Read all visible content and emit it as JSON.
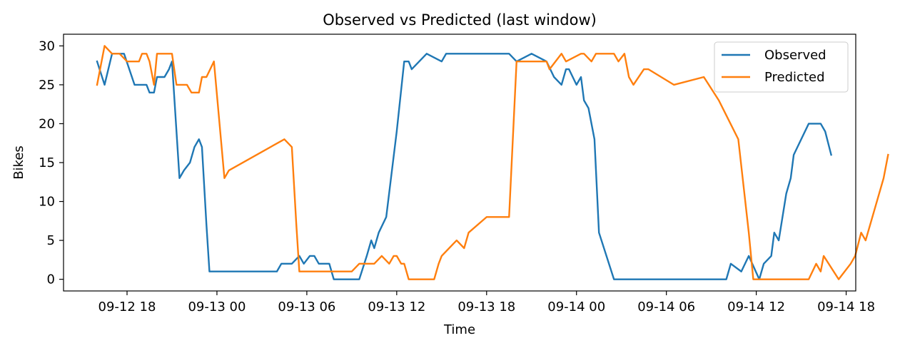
{
  "chart_data": {
    "type": "line",
    "title": "Observed vs Predicted (last window)",
    "xlabel": "Time",
    "ylabel": "Bikes",
    "x_unit": "hours since 2024-09-12 00:00",
    "xlim": [
      13.76,
      66.64
    ],
    "ylim": [
      -1.5,
      31.5
    ],
    "x_ticks": [
      {
        "value": 18,
        "label": "09-12 18"
      },
      {
        "value": 24,
        "label": "09-13 00"
      },
      {
        "value": 30,
        "label": "09-13 06"
      },
      {
        "value": 36,
        "label": "09-13 12"
      },
      {
        "value": 42,
        "label": "09-13 18"
      },
      {
        "value": 48,
        "label": "09-14 00"
      },
      {
        "value": 54,
        "label": "09-14 06"
      },
      {
        "value": 60,
        "label": "09-14 12"
      },
      {
        "value": 66,
        "label": "09-14 18"
      }
    ],
    "y_ticks": [
      0,
      5,
      10,
      15,
      20,
      25,
      30
    ],
    "grid": false,
    "legend_position": "top-right",
    "series": [
      {
        "name": "Observed",
        "color": "#1f77b4",
        "points": [
          [
            16.0,
            28
          ],
          [
            16.5,
            25
          ],
          [
            17.0,
            29
          ],
          [
            17.5,
            29
          ],
          [
            17.8,
            29
          ],
          [
            18.5,
            25
          ],
          [
            19.0,
            25
          ],
          [
            19.3,
            25
          ],
          [
            19.5,
            24
          ],
          [
            19.8,
            24
          ],
          [
            20.0,
            26
          ],
          [
            20.5,
            26
          ],
          [
            20.8,
            27
          ],
          [
            21.0,
            28
          ],
          [
            21.5,
            13
          ],
          [
            21.8,
            14
          ],
          [
            22.2,
            15
          ],
          [
            22.5,
            17
          ],
          [
            22.8,
            18
          ],
          [
            23.0,
            17
          ],
          [
            23.3,
            7
          ],
          [
            23.5,
            1
          ],
          [
            24.0,
            1
          ],
          [
            27.0,
            1
          ],
          [
            27.5,
            1
          ],
          [
            28.0,
            1
          ],
          [
            28.3,
            2
          ],
          [
            29.0,
            2
          ],
          [
            29.5,
            3
          ],
          [
            29.8,
            2
          ],
          [
            30.2,
            3
          ],
          [
            30.5,
            3
          ],
          [
            30.8,
            2
          ],
          [
            31.3,
            2
          ],
          [
            31.5,
            2
          ],
          [
            31.8,
            0
          ],
          [
            33.5,
            0
          ],
          [
            34.0,
            3
          ],
          [
            34.3,
            5
          ],
          [
            34.5,
            4
          ],
          [
            34.8,
            6
          ],
          [
            35.3,
            8
          ],
          [
            36.0,
            19
          ],
          [
            36.5,
            28
          ],
          [
            36.8,
            28
          ],
          [
            37.0,
            27
          ],
          [
            38.0,
            29
          ],
          [
            39.0,
            28
          ],
          [
            39.3,
            29
          ],
          [
            41.0,
            29
          ],
          [
            43.5,
            29
          ],
          [
            44.0,
            28
          ],
          [
            45.0,
            29
          ],
          [
            46.0,
            28
          ],
          [
            46.5,
            26
          ],
          [
            47.0,
            25
          ],
          [
            47.3,
            27
          ],
          [
            47.5,
            27
          ],
          [
            48.0,
            25
          ],
          [
            48.3,
            26
          ],
          [
            48.5,
            23
          ],
          [
            48.8,
            22
          ],
          [
            49.2,
            18
          ],
          [
            49.5,
            6
          ],
          [
            50.5,
            0
          ],
          [
            56.5,
            0
          ],
          [
            58.0,
            0
          ],
          [
            58.3,
            2
          ],
          [
            59.0,
            1
          ],
          [
            59.5,
            3
          ],
          [
            60.2,
            0
          ],
          [
            60.5,
            2
          ],
          [
            61.0,
            3
          ],
          [
            61.2,
            6
          ],
          [
            61.5,
            5
          ],
          [
            62.0,
            11
          ],
          [
            62.3,
            13
          ],
          [
            62.5,
            16
          ],
          [
            63.0,
            18
          ],
          [
            63.5,
            20
          ],
          [
            64.3,
            20
          ],
          [
            64.6,
            19
          ],
          [
            65.0,
            16
          ]
        ]
      },
      {
        "name": "Predicted",
        "color": "#ff7f0e",
        "points": [
          [
            16.0,
            25
          ],
          [
            16.5,
            30
          ],
          [
            17.0,
            29
          ],
          [
            17.5,
            29
          ],
          [
            18.0,
            28
          ],
          [
            18.5,
            28
          ],
          [
            18.8,
            28
          ],
          [
            19.0,
            29
          ],
          [
            19.3,
            29
          ],
          [
            19.5,
            28
          ],
          [
            19.8,
            25
          ],
          [
            20.0,
            29
          ],
          [
            20.5,
            29
          ],
          [
            21.0,
            29
          ],
          [
            21.3,
            25
          ],
          [
            22.0,
            25
          ],
          [
            22.3,
            24
          ],
          [
            22.8,
            24
          ],
          [
            23.0,
            26
          ],
          [
            23.3,
            26
          ],
          [
            23.8,
            28
          ],
          [
            24.5,
            13
          ],
          [
            24.8,
            14
          ],
          [
            28.5,
            18
          ],
          [
            29.0,
            17
          ],
          [
            29.3,
            7
          ],
          [
            29.5,
            1
          ],
          [
            33.0,
            1
          ],
          [
            33.5,
            2
          ],
          [
            34.5,
            2
          ],
          [
            35.0,
            3
          ],
          [
            35.5,
            2
          ],
          [
            35.8,
            3
          ],
          [
            36.0,
            3
          ],
          [
            36.3,
            2
          ],
          [
            36.5,
            2
          ],
          [
            36.8,
            0
          ],
          [
            38.5,
            0
          ],
          [
            38.8,
            2
          ],
          [
            39.0,
            3
          ],
          [
            40.0,
            5
          ],
          [
            40.5,
            4
          ],
          [
            40.8,
            6
          ],
          [
            42.0,
            8
          ],
          [
            43.5,
            8
          ],
          [
            44.0,
            28
          ],
          [
            45.5,
            28
          ],
          [
            46.0,
            28
          ],
          [
            46.2,
            27
          ],
          [
            47.0,
            29
          ],
          [
            47.3,
            28
          ],
          [
            48.3,
            29
          ],
          [
            48.5,
            29
          ],
          [
            49.0,
            28
          ],
          [
            49.3,
            29
          ],
          [
            50.0,
            29
          ],
          [
            50.5,
            29
          ],
          [
            50.8,
            28
          ],
          [
            51.2,
            29
          ],
          [
            51.5,
            26
          ],
          [
            51.8,
            25
          ],
          [
            52.5,
            27
          ],
          [
            52.8,
            27
          ],
          [
            54.5,
            25
          ],
          [
            56.5,
            26
          ],
          [
            57.5,
            23
          ],
          [
            58.8,
            18
          ],
          [
            59.5,
            6
          ],
          [
            59.8,
            0
          ],
          [
            62.0,
            0
          ],
          [
            63.5,
            0
          ],
          [
            64.0,
            2
          ],
          [
            64.3,
            1
          ],
          [
            64.5,
            3
          ],
          [
            65.5,
            0
          ],
          [
            66.3,
            2
          ],
          [
            66.6,
            3
          ],
          [
            67.0,
            6
          ],
          [
            67.3,
            5
          ],
          [
            68.5,
            13
          ],
          [
            68.8,
            16
          ]
        ]
      }
    ]
  }
}
